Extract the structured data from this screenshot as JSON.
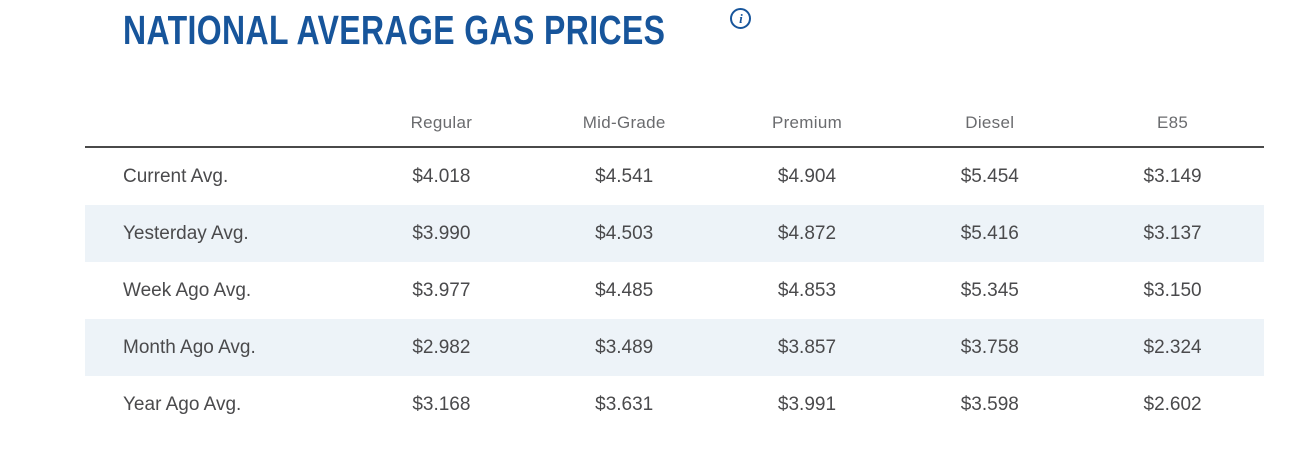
{
  "header": {
    "title": "NATIONAL AVERAGE GAS PRICES",
    "info_icon": "i"
  },
  "colors": {
    "title_blue": "#17559B",
    "stripe_blue": "#EDF3F8",
    "divider_gray": "#4A4A4A",
    "body_text": "#4A4A4C",
    "header_text": "#6A6B6E"
  },
  "chart_data": {
    "type": "table",
    "title": "NATIONAL AVERAGE GAS PRICES",
    "columns": [
      "Regular",
      "Mid-Grade",
      "Premium",
      "Diesel",
      "E85"
    ],
    "rows": [
      {
        "label": "Current Avg.",
        "values": [
          "$4.018",
          "$4.541",
          "$4.904",
          "$5.454",
          "$3.149"
        ]
      },
      {
        "label": "Yesterday Avg.",
        "values": [
          "$3.990",
          "$4.503",
          "$4.872",
          "$5.416",
          "$3.137"
        ]
      },
      {
        "label": "Week Ago Avg.",
        "values": [
          "$3.977",
          "$4.485",
          "$4.853",
          "$5.345",
          "$3.150"
        ]
      },
      {
        "label": "Month Ago Avg.",
        "values": [
          "$2.982",
          "$3.489",
          "$3.857",
          "$3.758",
          "$2.324"
        ]
      },
      {
        "label": "Year Ago Avg.",
        "values": [
          "$3.168",
          "$3.631",
          "$3.991",
          "$3.598",
          "$2.602"
        ]
      }
    ],
    "layout": {
      "striped_rows": true,
      "stripe_on": "even",
      "header_divider": true
    }
  }
}
